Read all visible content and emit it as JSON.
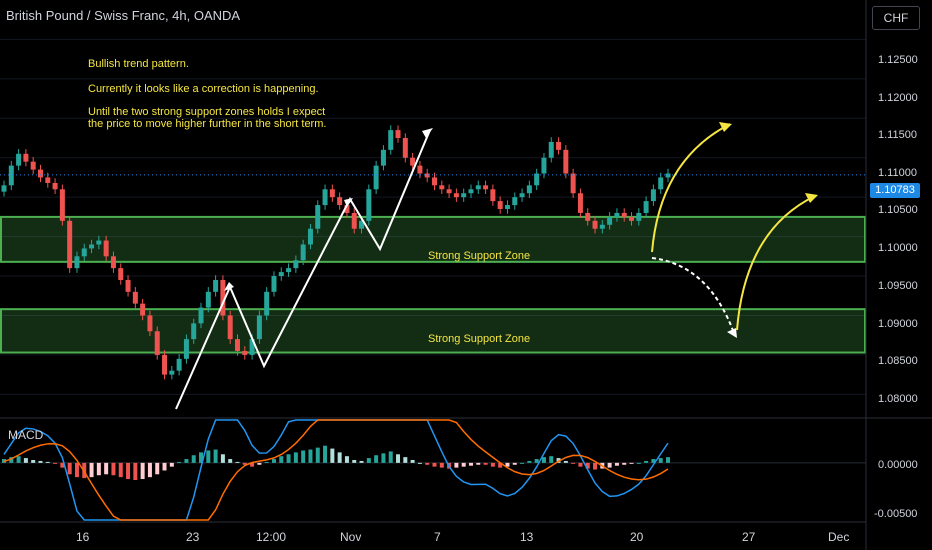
{
  "title": "British Pound / Swiss Franc, 4h, OANDA",
  "currency_button": "CHF",
  "annotations": {
    "line1": "Bullish trend pattern.",
    "line2": "Currently it looks like a correction is happening.",
    "line3a": "Until the two strong support zones holds I expect",
    "line3b": "the price to move higher further in the short term."
  },
  "zones": [
    {
      "label": "Strong Support Zone",
      "low": 1.0968,
      "high": 1.1025
    },
    {
      "label": "Strong Support Zone",
      "low": 1.0853,
      "high": 1.0908
    }
  ],
  "last_price": "1.10783",
  "macd_label": "MACD",
  "colors": {
    "up": "#26a69a",
    "down": "#ef5350",
    "zone": "#4caf50",
    "arrow_yellow": "#f5e642",
    "price_tag": "#1e88e5"
  },
  "chart_data": {
    "type": "candlestick",
    "symbol": "British Pound / Swiss Franc, 4h, OANDA",
    "y_ticks": [
      "1.12500",
      "1.12000",
      "1.11500",
      "1.11000",
      "1.10500",
      "1.10000",
      "1.09500",
      "1.09000",
      "1.08500",
      "1.08000"
    ],
    "x_ticks": [
      "16",
      "23",
      "12:00",
      "Nov",
      "7",
      "13",
      "20",
      "27",
      "Dec"
    ],
    "macd_ticks": [
      "0.00000",
      "-0.00500"
    ],
    "ylim": [
      1.077,
      1.13
    ],
    "close_path": [
      1.1065,
      1.109,
      1.1105,
      1.1095,
      1.1085,
      1.1075,
      1.1068,
      1.106,
      1.102,
      1.096,
      1.0975,
      1.0985,
      1.099,
      1.0995,
      1.0975,
      1.096,
      1.0945,
      1.093,
      1.0915,
      1.09,
      1.088,
      1.085,
      1.0825,
      1.083,
      1.0845,
      1.087,
      1.089,
      1.091,
      1.093,
      1.0945,
      1.09,
      1.087,
      1.0855,
      1.085,
      1.087,
      1.09,
      1.093,
      1.095,
      1.0955,
      1.096,
      1.097,
      1.099,
      1.101,
      1.104,
      1.106,
      1.105,
      1.104,
      1.103,
      1.101,
      1.102,
      1.106,
      1.109,
      1.111,
      1.1135,
      1.1125,
      1.11,
      1.109,
      1.108,
      1.1075,
      1.1065,
      1.106,
      1.1055,
      1.105,
      1.1055,
      1.106,
      1.1065,
      1.106,
      1.1045,
      1.1035,
      1.104,
      1.105,
      1.1055,
      1.1065,
      1.108,
      1.11,
      1.112,
      1.111,
      1.108,
      1.1055,
      1.103,
      1.102,
      1.101,
      1.1015,
      1.1025,
      1.103,
      1.1025,
      1.102,
      1.103,
      1.1045,
      1.106,
      1.1075,
      1.108
    ],
    "macd_hist": [
      0.0004,
      0.0006,
      0.0007,
      0.0005,
      0.0003,
      0.0002,
      0.0001,
      -0.0001,
      -0.0005,
      -0.0012,
      -0.0015,
      -0.0016,
      -0.0015,
      -0.0013,
      -0.0012,
      -0.0013,
      -0.0015,
      -0.0017,
      -0.0018,
      -0.0017,
      -0.0015,
      -0.0012,
      -0.0008,
      -0.0004,
      0.0001,
      0.0004,
      0.0008,
      0.0011,
      0.0013,
      0.0014,
      0.0009,
      0.0004,
      0.0001,
      -0.0002,
      -0.0004,
      -0.0002,
      0.0001,
      0.0004,
      0.0007,
      0.0009,
      0.0011,
      0.0013,
      0.0014,
      0.0016,
      0.0018,
      0.0015,
      0.0011,
      0.0007,
      0.0003,
      0.0002,
      0.0005,
      0.0008,
      0.001,
      0.0012,
      0.0009,
      0.0006,
      0.0003,
      0.0,
      -0.0002,
      -0.0004,
      -0.0005,
      -0.0006,
      -0.0005,
      -0.0004,
      -0.0003,
      -0.0002,
      -0.0002,
      -0.0004,
      -0.0005,
      -0.0004,
      -0.0002,
      0.0,
      0.0002,
      0.0004,
      0.0006,
      0.0007,
      0.0005,
      0.0002,
      -0.0001,
      -0.0004,
      -0.0006,
      -0.0007,
      -0.0006,
      -0.0005,
      -0.0003,
      -0.0002,
      -0.0001,
      0.0,
      0.0002,
      0.0004,
      0.0005,
      0.0006
    ],
    "macd_ylim": [
      -0.006,
      0.0045
    ]
  }
}
